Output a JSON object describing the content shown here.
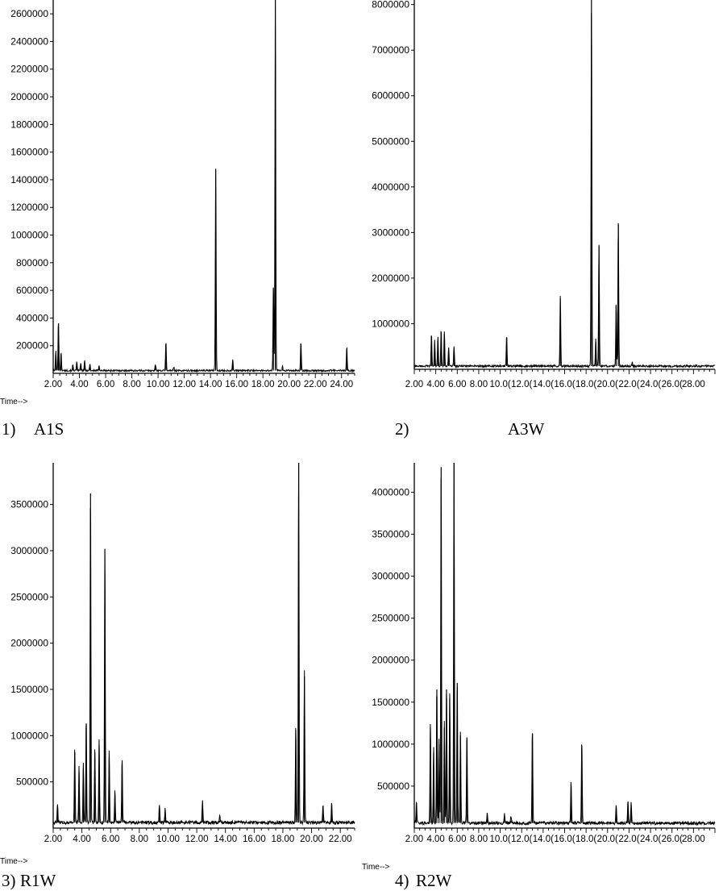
{
  "chart_data": [
    {
      "type": "line",
      "caption_number": "1)",
      "caption_name": "A1S",
      "time_label": "Time-->",
      "xlim": [
        2.0,
        25.0
      ],
      "ylim": [
        0,
        2700000
      ],
      "x_ticks": [
        2,
        4,
        6,
        8,
        10,
        12,
        14,
        16,
        18,
        20,
        22,
        24
      ],
      "x_tick_labels": [
        "2.00",
        "4.00",
        "6.00",
        "8.00",
        "10.00",
        "12.00",
        "14.00",
        "16.00",
        "18.00",
        "20.00",
        "22.00",
        "24.00"
      ],
      "y_ticks": [
        200000,
        400000,
        600000,
        800000,
        1000000,
        1200000,
        1400000,
        1600000,
        1800000,
        2000000,
        2200000,
        2400000,
        2600000
      ],
      "y_tick_labels": [
        "200000",
        "400000",
        "600000",
        "800000",
        "1000000",
        "1200000",
        "1400000",
        "1600000",
        "1800000",
        "2000000",
        "2200000",
        "2400000",
        "2600000"
      ],
      "baseline": 20000,
      "peaks": [
        [
          2.2,
          140000
        ],
        [
          2.4,
          360000
        ],
        [
          2.6,
          130000
        ],
        [
          3.5,
          40000
        ],
        [
          3.8,
          60000
        ],
        [
          4.1,
          55000
        ],
        [
          4.4,
          70000
        ],
        [
          4.8,
          50000
        ],
        [
          5.5,
          40000
        ],
        [
          9.8,
          45000
        ],
        [
          10.6,
          210000
        ],
        [
          11.2,
          25000
        ],
        [
          14.4,
          1480000
        ],
        [
          15.7,
          80000
        ],
        [
          18.8,
          620000
        ],
        [
          18.95,
          2700000
        ],
        [
          19.5,
          30000
        ],
        [
          20.9,
          210000
        ],
        [
          24.4,
          170000
        ]
      ]
    },
    {
      "type": "line",
      "caption_number": "2)",
      "caption_name": "A3W",
      "time_label": "",
      "xlim": [
        2.0,
        30.0
      ],
      "ylim": [
        0,
        8100000
      ],
      "x_ticks": [
        2,
        4,
        6,
        8,
        10,
        12,
        14,
        16,
        18,
        20,
        22,
        24,
        26,
        28
      ],
      "x_tick_labels": [
        "2.00",
        "4.00",
        "6.00",
        "8.00",
        "10.0(",
        "12.0(",
        "14.0(",
        "16.0(",
        "18.0(",
        "20.0(",
        "22.0(",
        "24.0(",
        "26.0(",
        "28.00"
      ],
      "y_ticks": [
        1000000,
        2000000,
        3000000,
        4000000,
        5000000,
        6000000,
        7000000,
        8000000
      ],
      "y_tick_labels": [
        "1000000",
        "2000000",
        "3000000",
        "4000000",
        "5000000",
        "6000000",
        "7000000",
        "8000000"
      ],
      "baseline": 70000,
      "peaks": [
        [
          3.6,
          700000
        ],
        [
          3.9,
          560000
        ],
        [
          4.2,
          640000
        ],
        [
          4.5,
          820000
        ],
        [
          4.8,
          760000
        ],
        [
          5.2,
          420000
        ],
        [
          5.7,
          440000
        ],
        [
          10.6,
          680000
        ],
        [
          15.6,
          1550000
        ],
        [
          18.5,
          8100000
        ],
        [
          18.9,
          600000
        ],
        [
          19.2,
          2700000
        ],
        [
          20.8,
          1400000
        ],
        [
          21.0,
          3200000
        ],
        [
          22.3,
          100000
        ]
      ]
    },
    {
      "type": "line",
      "caption_number": "3)",
      "caption_name": "R1W",
      "time_label": "Time-->",
      "xlim": [
        2.0,
        23.0
      ],
      "ylim": [
        0,
        3950000
      ],
      "x_ticks": [
        2,
        4,
        6,
        8,
        10,
        12,
        14,
        16,
        18,
        20,
        22
      ],
      "x_tick_labels": [
        "2.00",
        "4.00",
        "6.00",
        "8.00",
        "10.00",
        "12.00",
        "14.00",
        "16.00",
        "18.00",
        "20.00",
        "22.00"
      ],
      "y_ticks": [
        500000,
        1000000,
        1500000,
        2000000,
        2500000,
        3000000,
        3500000
      ],
      "y_tick_labels": [
        "500000",
        "1000000",
        "1500000",
        "2000000",
        "2500000",
        "3000000",
        "3500000"
      ],
      "baseline": 60000,
      "peaks": [
        [
          2.3,
          200000
        ],
        [
          3.5,
          820000
        ],
        [
          3.8,
          600000
        ],
        [
          4.1,
          640000
        ],
        [
          4.3,
          1130000
        ],
        [
          4.6,
          3620000
        ],
        [
          4.9,
          820000
        ],
        [
          5.2,
          900000
        ],
        [
          5.6,
          3020000
        ],
        [
          5.9,
          780000
        ],
        [
          6.3,
          360000
        ],
        [
          6.8,
          700000
        ],
        [
          9.4,
          200000
        ],
        [
          9.8,
          150000
        ],
        [
          12.4,
          240000
        ],
        [
          13.6,
          80000
        ],
        [
          18.9,
          1060000
        ],
        [
          19.1,
          3950000
        ],
        [
          19.5,
          1640000
        ],
        [
          20.8,
          200000
        ],
        [
          21.4,
          210000
        ]
      ]
    },
    {
      "type": "line",
      "caption_number": "4)",
      "caption_name": "R2W",
      "time_label": "Time-->",
      "xlim": [
        2.0,
        30.0
      ],
      "ylim": [
        0,
        4350000
      ],
      "x_ticks": [
        2,
        4,
        6,
        8,
        10,
        12,
        14,
        16,
        18,
        20,
        22,
        24,
        26,
        28
      ],
      "x_tick_labels": [
        "2.00",
        "4.00",
        "6.00",
        "8.00",
        "10.0(",
        "12.0(",
        "14.0(",
        "16.0(",
        "18.0(",
        "20.0(",
        "22.0(",
        "24.0(",
        "26.0(",
        "28.00"
      ],
      "y_ticks": [
        500000,
        1000000,
        1500000,
        2000000,
        2500000,
        3000000,
        3500000,
        4000000
      ],
      "y_tick_labels": [
        "500000",
        "1000000",
        "1500000",
        "2000000",
        "2500000",
        "3000000",
        "3500000",
        "4000000"
      ],
      "baseline": 60000,
      "peaks": [
        [
          2.2,
          250000
        ],
        [
          3.5,
          1200000
        ],
        [
          3.8,
          900000
        ],
        [
          4.1,
          1650000
        ],
        [
          4.3,
          1000000
        ],
        [
          4.5,
          4300000
        ],
        [
          4.8,
          1200000
        ],
        [
          5.0,
          1650000
        ],
        [
          5.3,
          1550000
        ],
        [
          5.7,
          4350000
        ],
        [
          6.0,
          1730000
        ],
        [
          6.3,
          1100000
        ],
        [
          6.9,
          1080000
        ],
        [
          8.8,
          120000
        ],
        [
          10.4,
          110000
        ],
        [
          11.0,
          90000
        ],
        [
          13.0,
          1130000
        ],
        [
          16.6,
          510000
        ],
        [
          17.6,
          980000
        ],
        [
          20.8,
          220000
        ],
        [
          21.9,
          260000
        ],
        [
          22.2,
          240000
        ]
      ]
    }
  ]
}
